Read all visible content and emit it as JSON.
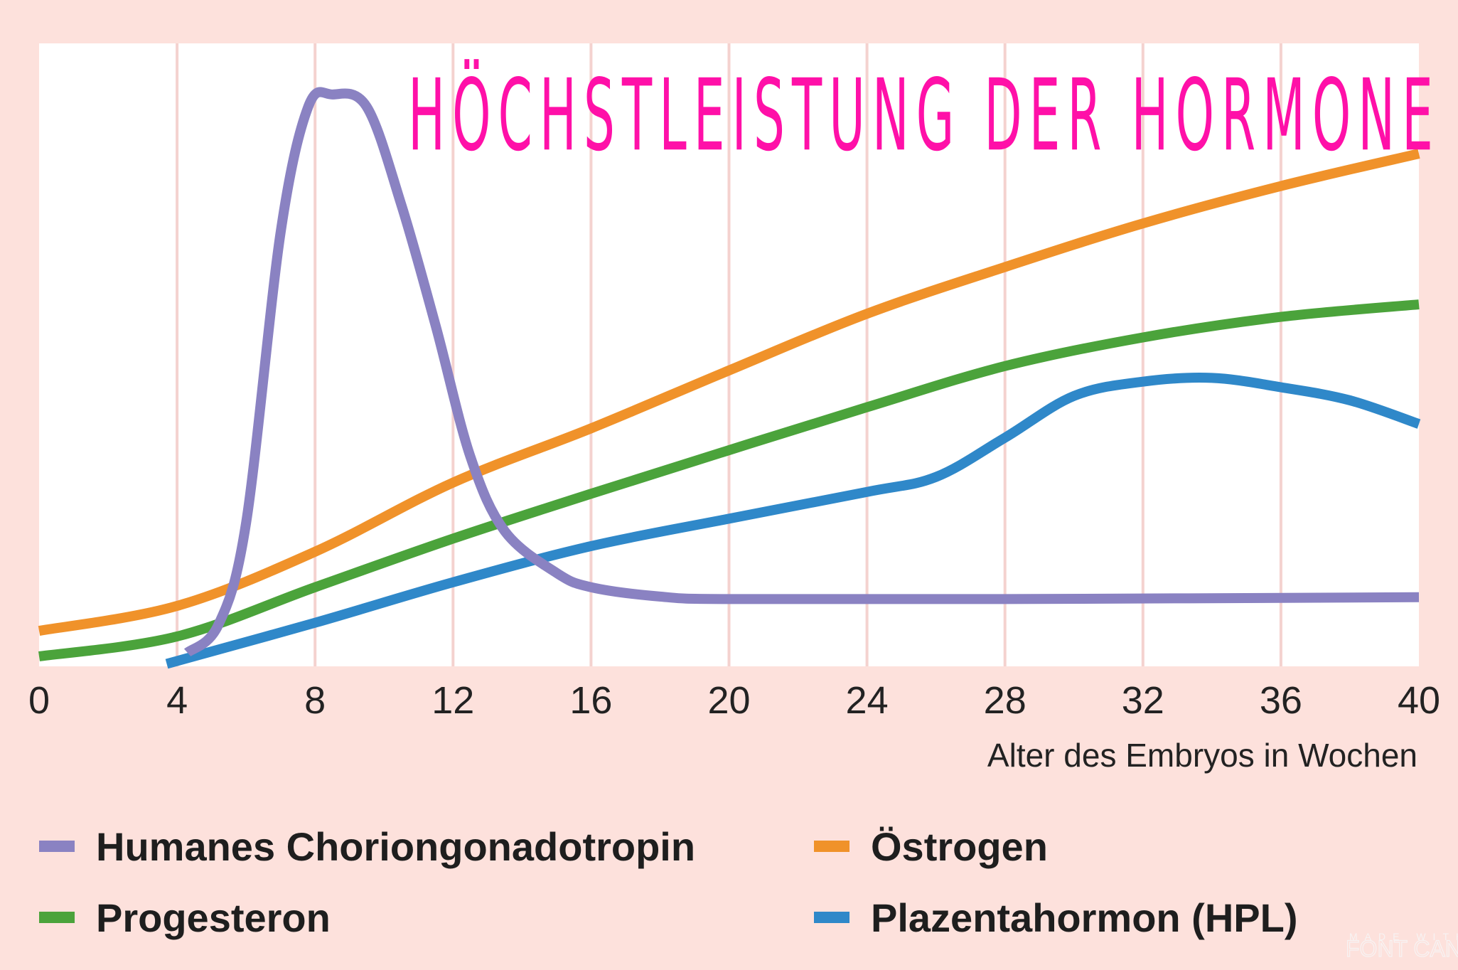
{
  "chart_data": {
    "type": "line",
    "title": "HÖCHSTLEISTUNG DER HORMONE",
    "xlabel": "Alter des Embryos in Wochen",
    "ylabel": "",
    "xlim": [
      0,
      40
    ],
    "ylim": [
      0,
      100
    ],
    "xticks": [
      "0",
      "4",
      "8",
      "12",
      "16",
      "20",
      "24",
      "28",
      "32",
      "36",
      "40"
    ],
    "grid": "vertical",
    "legend_placement": "bottom",
    "series": [
      {
        "name": "Humanes Choriongonadotropin",
        "color": "#8a82c2",
        "x": [
          4.3,
          5.2,
          6,
          7,
          7.8,
          8.5,
          9.5,
          10.5,
          11.5,
          12.5,
          13.5,
          15,
          16,
          18,
          20,
          28,
          40
        ],
        "y": [
          2.2,
          6.7,
          23,
          69.6,
          89.8,
          91.8,
          89.8,
          74.1,
          54.6,
          33.7,
          21.7,
          15,
          12.7,
          11.2,
          10.8,
          10.8,
          11.1
        ]
      },
      {
        "name": "Östrogen",
        "color": "#f0922a",
        "x": [
          0,
          4,
          8,
          12,
          16,
          20,
          24,
          28,
          32,
          36,
          40
        ],
        "y": [
          5.7,
          9.7,
          18.4,
          29.5,
          38.2,
          47.5,
          56.6,
          64.1,
          71.1,
          77.1,
          82.3
        ]
      },
      {
        "name": "Progesteron",
        "color": "#4ba33b",
        "x": [
          0,
          4,
          8,
          12,
          16,
          20,
          24,
          28,
          32,
          36,
          40
        ],
        "y": [
          1.6,
          4.8,
          12.7,
          20.5,
          27.7,
          34.7,
          41.6,
          48.2,
          52.8,
          56.1,
          58.1
        ]
      },
      {
        "name": "Plazentahormon (HPL)",
        "color": "#2f88c9",
        "x": [
          3.7,
          8,
          12,
          16,
          20,
          24,
          26,
          28,
          30,
          32,
          34,
          36,
          38,
          40
        ],
        "y": [
          0.4,
          7,
          13.5,
          19.3,
          23.7,
          28,
          30.4,
          36.7,
          43.4,
          45.7,
          46.3,
          44.8,
          42.7,
          38.9
        ]
      }
    ]
  },
  "colors": {
    "background": "#fde1dc",
    "plot": "#ffffff",
    "grid": "#f4d2cf",
    "title": "#ff10a8"
  },
  "watermark": {
    "line1": "MADE WITH",
    "line2": "FONT CANDY"
  }
}
